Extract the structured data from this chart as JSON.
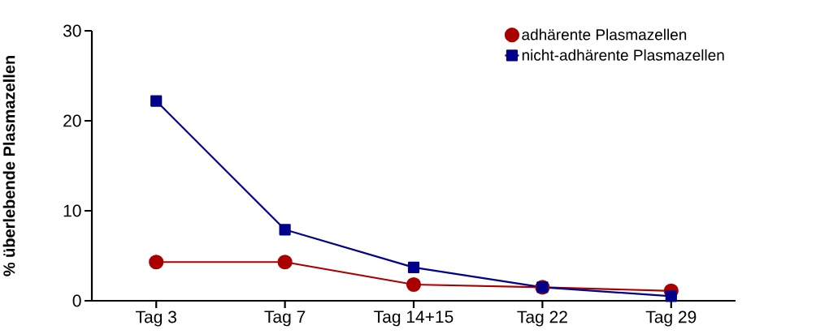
{
  "chart_data": {
    "type": "line",
    "ylabel": "% überlebende Plasmazellen",
    "categories": [
      "Tag 3",
      "Tag 7",
      "Tag 14+15",
      "Tag 22",
      "Tag 29"
    ],
    "series": [
      {
        "name": "adhärente Plasmazellen",
        "color": "#aa0000",
        "marker": "circle",
        "values": [
          4.3,
          4.3,
          1.8,
          1.5,
          1.1
        ]
      },
      {
        "name": "nicht-adhärente Plasmazellen",
        "color": "#000088",
        "marker": "square",
        "values": [
          22.2,
          7.9,
          3.7,
          1.5,
          0.5
        ]
      }
    ],
    "ylim": [
      0,
      30
    ],
    "yticks": [
      0,
      10,
      20,
      30
    ],
    "grid": false,
    "legend": "top right",
    "line_style": "solid"
  }
}
